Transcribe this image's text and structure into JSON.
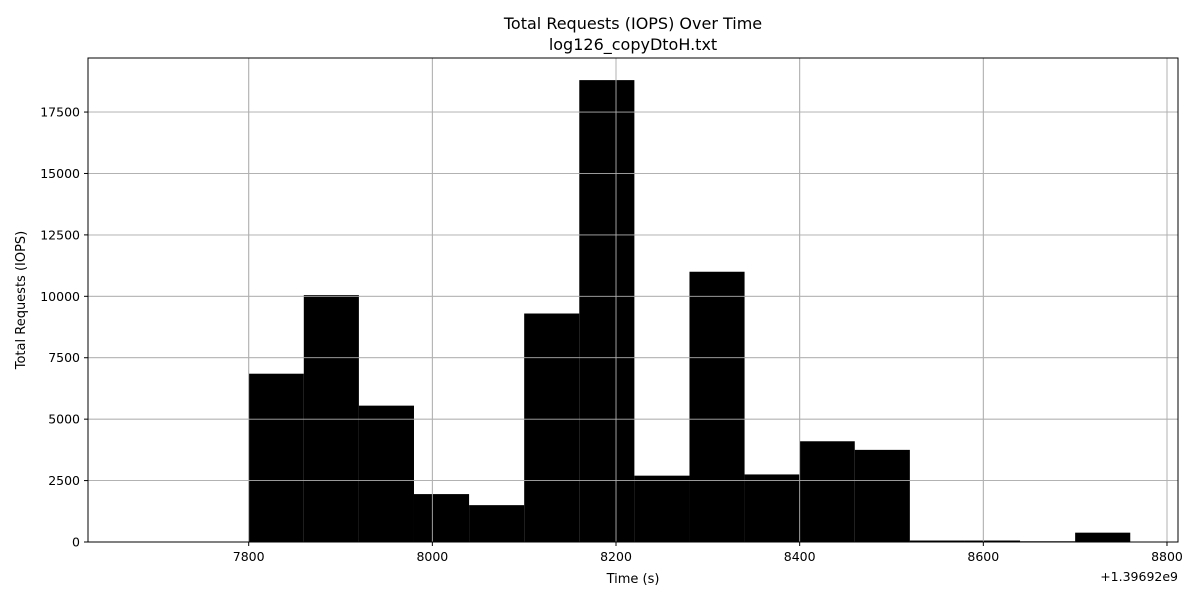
{
  "chart_data": {
    "type": "bar",
    "title": "Total Requests (IOPS) Over Time",
    "subtitle": "log126_copyDtoH.txt",
    "xlabel": "Time (s)",
    "ylabel": "Total Requests (IOPS)",
    "x_offset_label": "+1.39692e9",
    "bar_color": "#000000",
    "grid": true,
    "xlim": [
      7625,
      8812
    ],
    "ylim": [
      0,
      19700
    ],
    "x_ticks": [
      7800,
      8000,
      8200,
      8400,
      8600,
      8800
    ],
    "y_ticks": [
      0,
      2500,
      5000,
      7500,
      10000,
      12500,
      15000,
      17500
    ],
    "bars": [
      {
        "x_start": 7800,
        "x_end": 7860,
        "value": 6850
      },
      {
        "x_start": 7860,
        "x_end": 7920,
        "value": 10050
      },
      {
        "x_start": 7920,
        "x_end": 7980,
        "value": 5550
      },
      {
        "x_start": 7980,
        "x_end": 8040,
        "value": 1950
      },
      {
        "x_start": 8040,
        "x_end": 8100,
        "value": 1500
      },
      {
        "x_start": 8100,
        "x_end": 8160,
        "value": 9300
      },
      {
        "x_start": 8160,
        "x_end": 8220,
        "value": 18800
      },
      {
        "x_start": 8220,
        "x_end": 8280,
        "value": 2700
      },
      {
        "x_start": 8280,
        "x_end": 8340,
        "value": 11000
      },
      {
        "x_start": 8340,
        "x_end": 8400,
        "value": 2750
      },
      {
        "x_start": 8400,
        "x_end": 8460,
        "value": 4100
      },
      {
        "x_start": 8460,
        "x_end": 8520,
        "value": 3750
      },
      {
        "x_start": 8520,
        "x_end": 8580,
        "value": 60
      },
      {
        "x_start": 8580,
        "x_end": 8640,
        "value": 60
      },
      {
        "x_start": 8640,
        "x_end": 8700,
        "value": 30
      },
      {
        "x_start": 8700,
        "x_end": 8760,
        "value": 380
      }
    ]
  }
}
